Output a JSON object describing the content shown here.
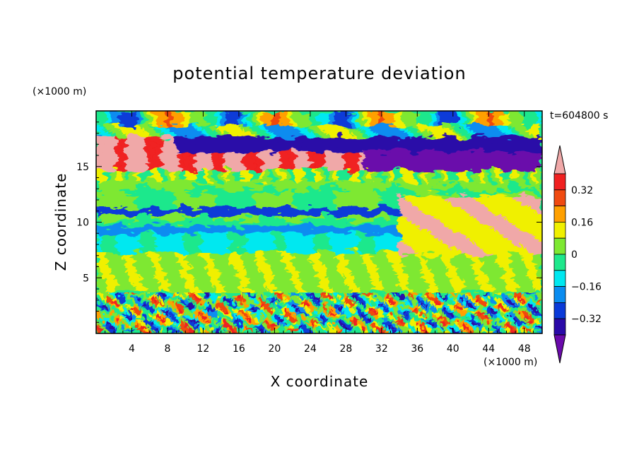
{
  "chart_data": {
    "type": "heatmap",
    "title": "potential temperature deviation",
    "xlabel": "X coordinate",
    "ylabel": "Z coordinate",
    "x_unit": "(×1000 m)",
    "y_unit": "(×1000 m)",
    "time_label": "t=604800 s",
    "xlim": [
      0,
      50
    ],
    "ylim": [
      0,
      20
    ],
    "x_ticks": [
      4,
      8,
      12,
      16,
      20,
      24,
      28,
      32,
      36,
      40,
      44,
      48
    ],
    "y_ticks": [
      5,
      10,
      15
    ],
    "colorbar": {
      "levels": [
        -0.4,
        -0.32,
        -0.24,
        -0.16,
        -0.08,
        0,
        0.08,
        0.16,
        0.24,
        0.32,
        0.4
      ],
      "tick_labels": [
        "0.32",
        "0.16",
        "0",
        "−0.16",
        "−0.32"
      ],
      "tick_values": [
        0.32,
        0.16,
        0,
        -0.16,
        -0.32
      ],
      "colors": [
        "#6a0aab",
        "#2a0aa8",
        "#0a3ad8",
        "#0a8cf0",
        "#00e8f0",
        "#1ee88c",
        "#7ee832",
        "#f0f000",
        "#ffa000",
        "#f04a10",
        "#f02020",
        "#f0a8a8"
      ],
      "extend": "both"
    },
    "regions": [
      {
        "x": [
          0,
          50
        ],
        "z": [
          14.8,
          17.6
        ],
        "value": 0.45
      },
      {
        "x": [
          0,
          50
        ],
        "z": [
          10.6,
          11.2
        ],
        "value": -0.35
      },
      {
        "x": [
          0,
          50
        ],
        "z": [
          9.1,
          9.6
        ],
        "value": -0.2
      },
      {
        "x": [
          0,
          50
        ],
        "z": [
          0,
          3.6
        ],
        "value": -0.1
      }
    ]
  }
}
